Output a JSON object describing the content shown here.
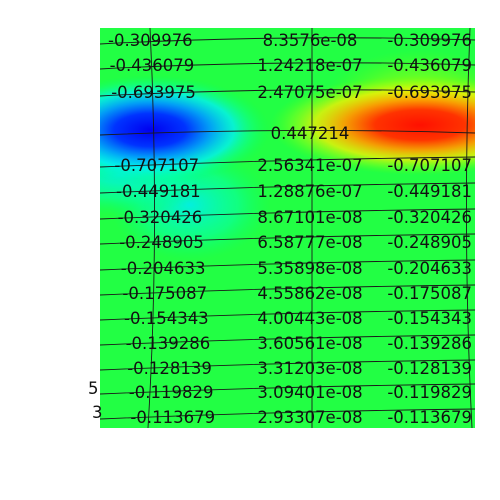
{
  "visualization": {
    "colormap": "rainbow",
    "background_color": "#ffffff",
    "grid_line_color": "#1a1a1a",
    "label_color": "#111111"
  },
  "rows": [
    {
      "left": "-0.309976",
      "center": "8.3576e-08",
      "right": "-0.309976"
    },
    {
      "left": "-0.436079",
      "center": "1.24218e-07",
      "right": "-0.436079"
    },
    {
      "left": "-0.693975",
      "center": "2.47075e-07",
      "right": "-0.693975"
    },
    {
      "left": "",
      "center": "0.447214",
      "right": ""
    },
    {
      "left": "-0.707107",
      "center": "2.56341e-07",
      "right": "-0.707107"
    },
    {
      "left": "-0.449181",
      "center": "1.28876e-07",
      "right": "-0.449181"
    },
    {
      "left": "-0.320426",
      "center": "8.67101e-08",
      "right": "-0.320426"
    },
    {
      "left": "-0.248905",
      "center": "6.58777e-08",
      "right": "-0.248905"
    },
    {
      "left": "-0.204633",
      "center": "5.35898e-08",
      "right": "-0.204633"
    },
    {
      "left": "-0.175087",
      "center": "4.55862e-08",
      "right": "-0.175087"
    },
    {
      "left": "-0.154343",
      "center": "4.00443e-08",
      "right": "-0.154343"
    },
    {
      "left": "-0.139286",
      "center": "3.60561e-08",
      "right": "-0.139286"
    },
    {
      "left": "-0.128139",
      "center": "3.31203e-08",
      "right": "-0.128139"
    },
    {
      "left": "-0.119829",
      "center": "3.09401e-08",
      "right": "-0.119829"
    },
    {
      "left": "-0.113679",
      "center": "2.93307e-08",
      "right": "-0.113679"
    }
  ],
  "outside_fragments": [
    "5",
    "3"
  ]
}
